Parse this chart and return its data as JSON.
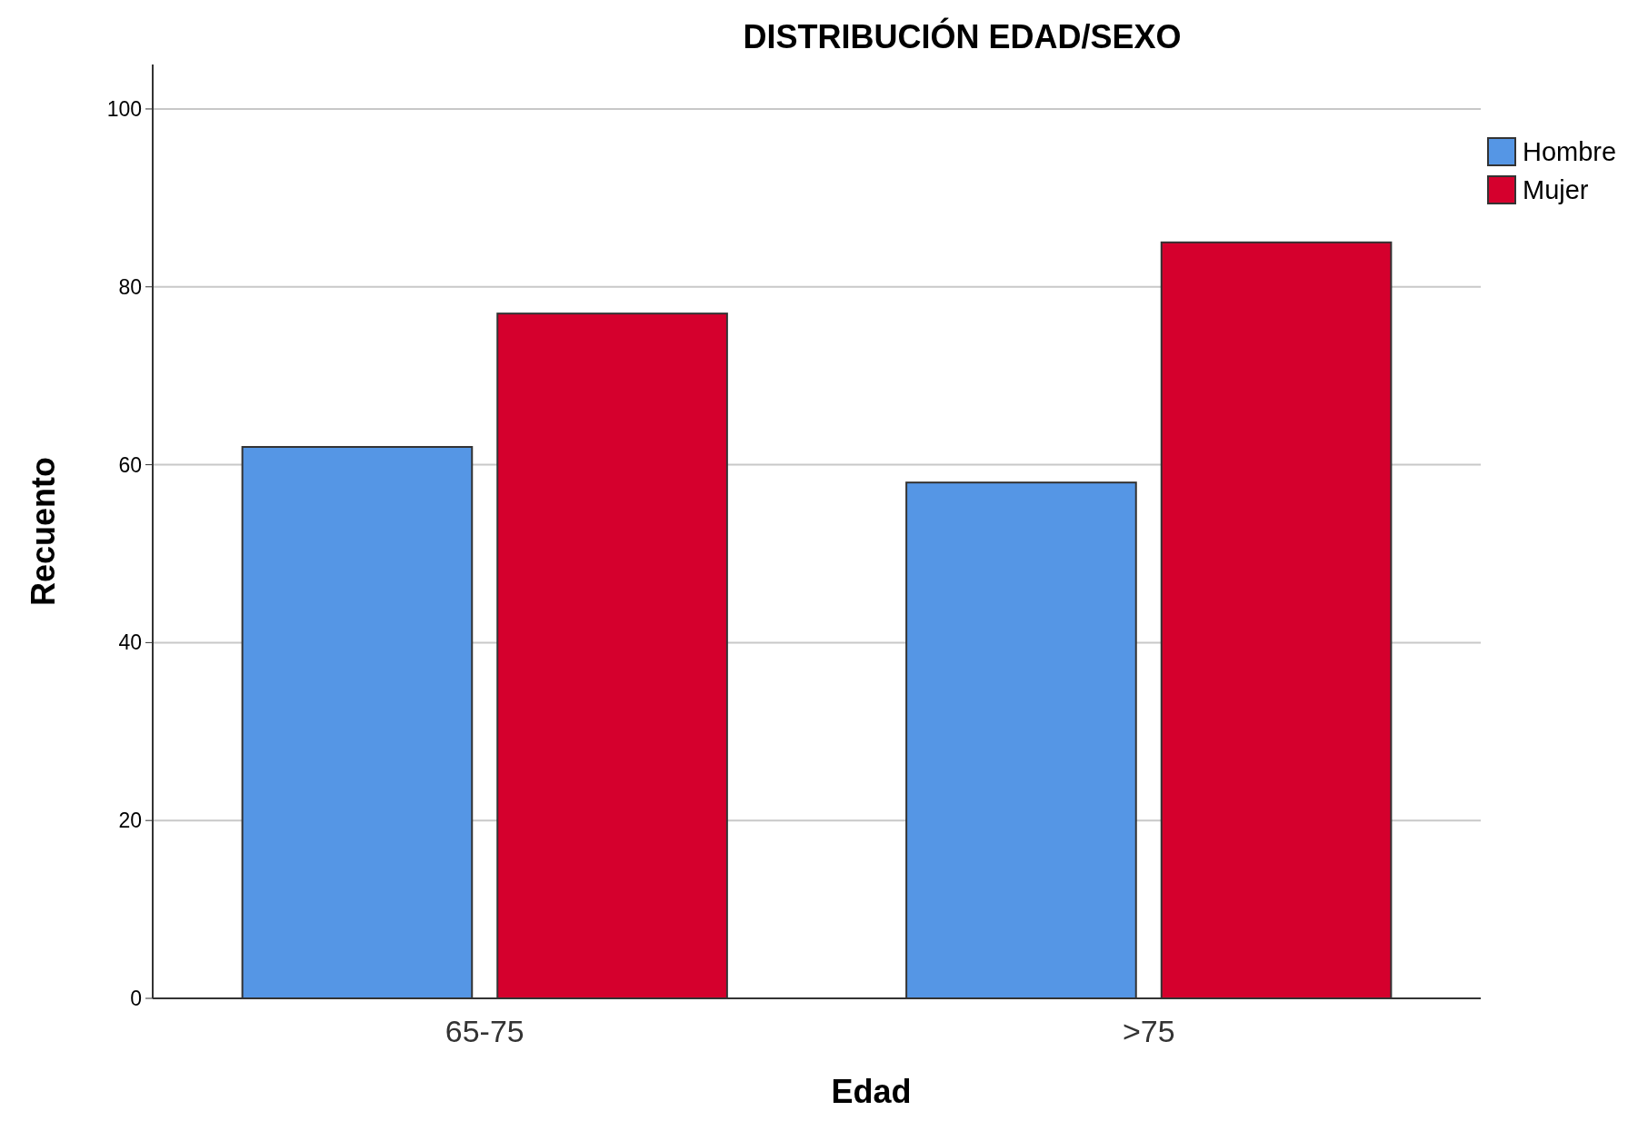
{
  "chart_data": {
    "type": "bar",
    "title": "DISTRIBUCIÓN EDAD/SEXO",
    "xlabel": "Edad",
    "ylabel": "Recuento",
    "categories": [
      "65-75",
      ">75"
    ],
    "series": [
      {
        "name": "Hombre",
        "color": "#5596e5",
        "values": [
          62,
          58
        ]
      },
      {
        "name": "Mujer",
        "color": "#d5002d",
        "values": [
          77,
          85
        ]
      }
    ],
    "ylim": [
      0,
      105
    ],
    "yticks": [
      0,
      20,
      40,
      60,
      80,
      100
    ],
    "grid": "y",
    "legend": "top right"
  }
}
